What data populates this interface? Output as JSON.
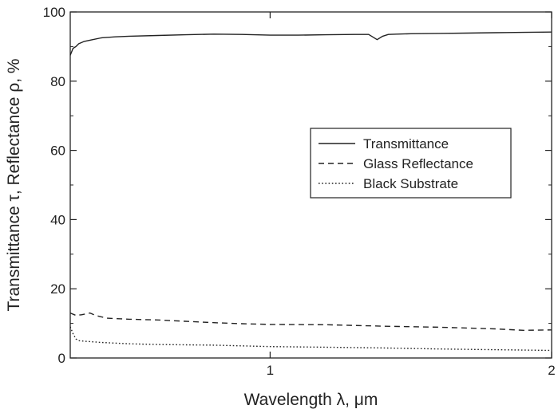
{
  "chart_data": {
    "type": "line",
    "title": "",
    "xlabel": "Wavelength λ, μm",
    "ylabel": "Transmittance τ, Reflectance ρ, %",
    "xlim": [
      0.29,
      2.0
    ],
    "ylim": [
      0,
      100
    ],
    "x_ticks": [
      {
        "value": 1,
        "label": "1"
      },
      {
        "value": 2,
        "label": "2"
      }
    ],
    "y_ticks": [
      {
        "value": 0,
        "label": "0"
      },
      {
        "value": 20,
        "label": "20"
      },
      {
        "value": 40,
        "label": "40"
      },
      {
        "value": 60,
        "label": "60"
      },
      {
        "value": 80,
        "label": "80"
      },
      {
        "value": 100,
        "label": "100"
      }
    ],
    "grid": false,
    "legend_position": "right-center",
    "series": [
      {
        "name": "Transmittance",
        "style": "solid",
        "color": "#222222",
        "x": [
          0.29,
          0.295,
          0.3,
          0.31,
          0.32,
          0.34,
          0.37,
          0.4,
          0.45,
          0.5,
          0.6,
          0.7,
          0.8,
          0.9,
          1.0,
          1.1,
          1.2,
          1.3,
          1.35,
          1.38,
          1.4,
          1.42,
          1.45,
          1.5,
          1.6,
          1.7,
          1.8,
          1.9,
          2.0
        ],
        "y": [
          87.5,
          88.5,
          89.5,
          90.0,
          90.8,
          91.5,
          92.0,
          92.5,
          92.8,
          93.0,
          93.2,
          93.4,
          93.6,
          93.5,
          93.3,
          93.3,
          93.4,
          93.5,
          93.5,
          92.0,
          93.0,
          93.5,
          93.6,
          93.7,
          93.8,
          93.9,
          94.0,
          94.1,
          94.2
        ]
      },
      {
        "name": "Glass Reflectance",
        "style": "dashed",
        "color": "#222222",
        "x": [
          0.29,
          0.31,
          0.33,
          0.36,
          0.38,
          0.42,
          0.5,
          0.6,
          0.7,
          0.8,
          0.9,
          1.0,
          1.2,
          1.4,
          1.6,
          1.8,
          1.9,
          2.0
        ],
        "y": [
          13.0,
          12.3,
          12.5,
          13.0,
          12.3,
          11.5,
          11.2,
          11.0,
          10.6,
          10.2,
          9.9,
          9.7,
          9.6,
          9.2,
          8.9,
          8.4,
          8.0,
          8.1
        ]
      },
      {
        "name": "Black Substrate",
        "style": "dotted",
        "color": "#222222",
        "x": [
          0.29,
          0.3,
          0.31,
          0.32,
          0.35,
          0.4,
          0.5,
          0.6,
          0.7,
          0.8,
          1.0,
          1.2,
          1.4,
          1.6,
          1.8,
          2.0
        ],
        "y": [
          9.0,
          7.0,
          5.5,
          5.0,
          4.8,
          4.5,
          4.1,
          3.9,
          3.8,
          3.7,
          3.3,
          3.1,
          2.9,
          2.6,
          2.4,
          2.2
        ]
      }
    ]
  }
}
